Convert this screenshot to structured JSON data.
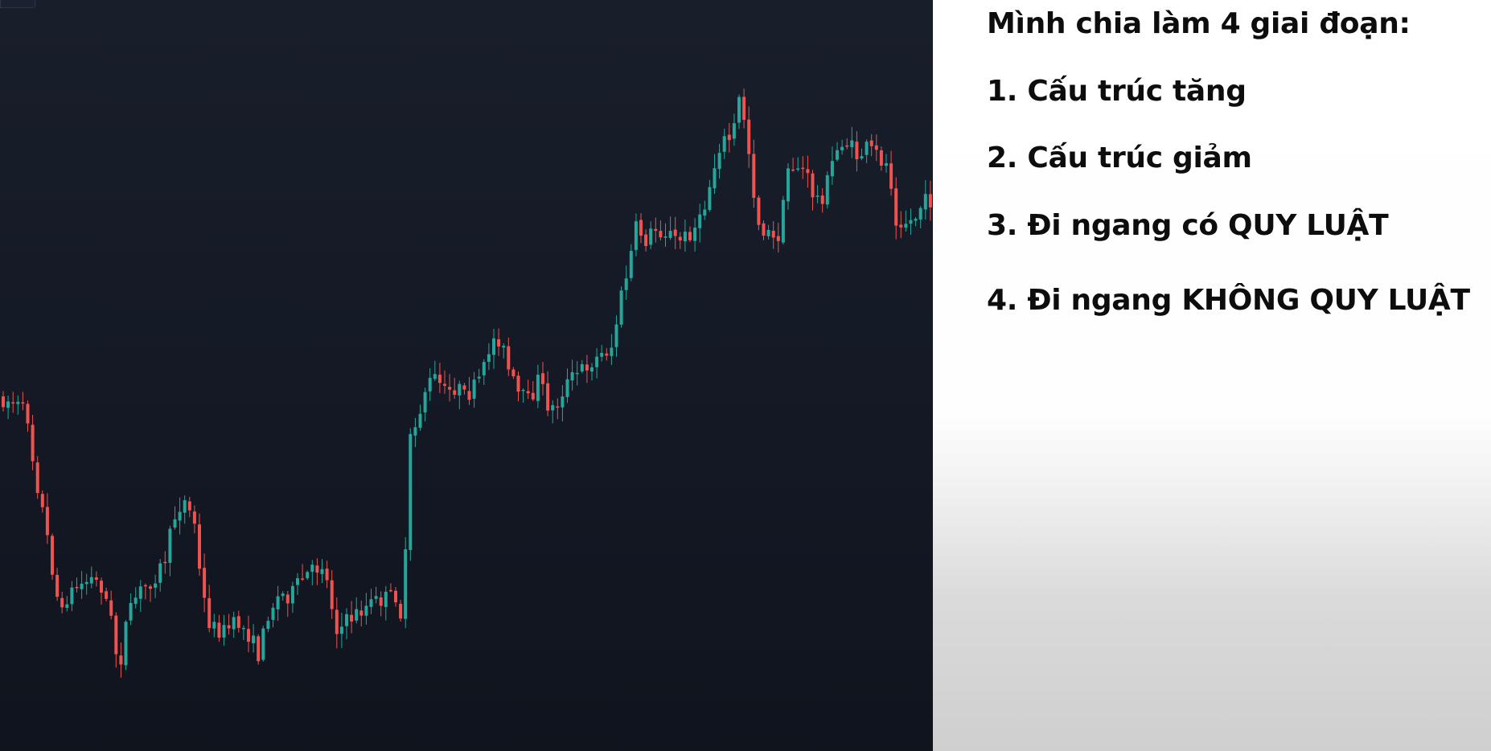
{
  "slide": {
    "heading": "Mình chia làm 4 giai đoạn:",
    "items": [
      "1. Cấu trúc tăng",
      "2. Cấu trúc giảm",
      "3. Đi ngang có QUY LUẬT",
      "4. Đi ngang KHÔNG QUY LUẬT"
    ]
  },
  "chart": {
    "type": "candlestick",
    "up_color": "#26a69a",
    "down_color": "#ef5350",
    "background": "#131722",
    "grid": false,
    "axes_visible": false
  }
}
